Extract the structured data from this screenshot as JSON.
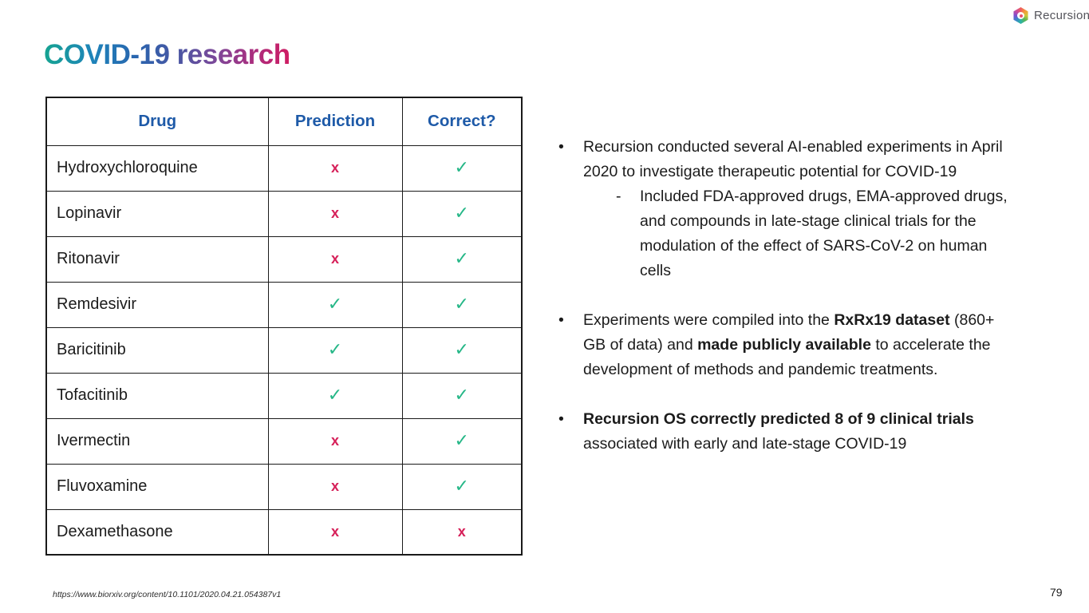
{
  "slide": {
    "title": "COVID-19 research",
    "page_number": "79",
    "footer_url": "https://www.biorxiv.org/content/10.1101/2020.04.21.054387v1"
  },
  "logo": {
    "wordmark": "Recursion",
    "icon": "recursion-hexagon-icon"
  },
  "colors": {
    "header_blue": "#1e5aa8",
    "check_green": "#25b787",
    "cross_pink": "#d62059",
    "title_gradient_start": "#16a491",
    "title_gradient_mid": "#2a64ae",
    "title_gradient_end": "#d01c62",
    "body_text": "#1b1b1b"
  },
  "table": {
    "headers": [
      "Drug",
      "Prediction",
      "Correct?"
    ],
    "rows": [
      {
        "drug": "Hydroxychloroquine",
        "prediction": "x",
        "correct": "✓"
      },
      {
        "drug": "Lopinavir",
        "prediction": "x",
        "correct": "✓"
      },
      {
        "drug": "Ritonavir",
        "prediction": "x",
        "correct": "✓"
      },
      {
        "drug": "Remdesivir",
        "prediction": "✓",
        "correct": "✓"
      },
      {
        "drug": "Baricitinib",
        "prediction": "✓",
        "correct": "✓"
      },
      {
        "drug": "Tofacitinib",
        "prediction": "✓",
        "correct": "✓"
      },
      {
        "drug": "Ivermectin",
        "prediction": "x",
        "correct": "✓"
      },
      {
        "drug": "Fluvoxamine",
        "prediction": "x",
        "correct": "✓"
      },
      {
        "drug": "Dexamethasone",
        "prediction": "x",
        "correct": "x"
      }
    ]
  },
  "bullets": [
    {
      "marker": "•",
      "indent": 0,
      "gap_before": false,
      "segments": [
        {
          "text": "Recursion conducted several AI-enabled experiments in April 2020 to investigate therapeutic potential for COVID-19",
          "bold": false
        }
      ]
    },
    {
      "marker": "-",
      "indent": 1,
      "gap_before": false,
      "segments": [
        {
          "text": "Included FDA-approved drugs, EMA-approved drugs, and compounds in late-stage clinical trials for the modulation of the effect of SARS-CoV-2 on human cells",
          "bold": false
        }
      ]
    },
    {
      "marker": "•",
      "indent": 0,
      "gap_before": true,
      "segments": [
        {
          "text": "Experiments were compiled into the ",
          "bold": false
        },
        {
          "text": "RxRx19 dataset",
          "bold": true
        },
        {
          "text": " (860+ GB of data) and ",
          "bold": false
        },
        {
          "text": "made publicly available",
          "bold": true
        },
        {
          "text": " to accelerate the development of methods and pandemic treatments.",
          "bold": false
        }
      ]
    },
    {
      "marker": "•",
      "indent": 0,
      "gap_before": true,
      "segments": [
        {
          "text": "Recursion OS correctly predicted 8 of 9 clinical trials",
          "bold": true
        },
        {
          "text": " associated with early and late-stage COVID-19",
          "bold": false
        }
      ]
    }
  ]
}
